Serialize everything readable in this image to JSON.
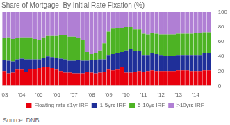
{
  "chart_data": {
    "type": "bar",
    "title": "Share of Mortgage  By Initial Rate Fixation (%)",
    "annotations": [
      "Source: DNB"
    ],
    "stacked": true,
    "grid": false,
    "legend": "bottom",
    "categories": [
      "'03",
      null,
      null,
      null,
      "'04",
      null,
      null,
      null,
      "'05",
      null,
      null,
      null,
      "'06",
      null,
      null,
      null,
      "'07",
      null,
      null,
      null,
      "'08",
      null,
      null,
      null,
      "'09",
      null,
      null,
      null,
      "'10",
      null,
      null,
      null,
      "'11",
      null,
      null,
      null,
      "'12",
      null,
      null,
      null,
      "'13",
      null,
      null,
      null,
      "'14",
      null,
      null,
      null
    ],
    "ylim": [
      0,
      100
    ],
    "yticks": [
      0,
      20,
      40,
      60,
      80,
      100
    ],
    "series": [
      {
        "name": "Floating rate ≤1yr IRF",
        "color": "#e8000d",
        "values": [
          20,
          17,
          18,
          22,
          22,
          19,
          23,
          23,
          24,
          26,
          26,
          24,
          22,
          20,
          18,
          18,
          17,
          17,
          17,
          19,
          18,
          17,
          18,
          19,
          22,
          21,
          22,
          26,
          18,
          18,
          19,
          20,
          19,
          20,
          21,
          20,
          20,
          20,
          20,
          20,
          21,
          21,
          21,
          20,
          20,
          20,
          21,
          21
        ]
      },
      {
        "name": "1-5yrs IRF",
        "color": "#1f2f99",
        "values": [
          15,
          17,
          15,
          14,
          15,
          17,
          13,
          13,
          12,
          12,
          14,
          15,
          16,
          17,
          18,
          16,
          17,
          18,
          17,
          15,
          17,
          18,
          18,
          17,
          20,
          22,
          22,
          20,
          30,
          32,
          28,
          27,
          23,
          22,
          23,
          23,
          22,
          21,
          21,
          21,
          21,
          21,
          21,
          22,
          22,
          22,
          23,
          23
        ]
      },
      {
        "name": "5-10ys IRF",
        "color": "#4db324",
        "values": [
          30,
          32,
          31,
          29,
          29,
          30,
          30,
          28,
          27,
          28,
          28,
          29,
          30,
          32,
          33,
          33,
          33,
          30,
          28,
          12,
          8,
          10,
          12,
          22,
          32,
          35,
          35,
          33,
          32,
          30,
          30,
          30,
          29,
          28,
          28,
          28,
          28,
          29,
          29,
          29,
          29,
          29,
          29,
          29,
          30,
          30,
          29,
          29
        ]
      },
      {
        "name": ">10yrs IRF",
        "color": "#b07fd4",
        "values": [
          35,
          34,
          36,
          35,
          34,
          34,
          34,
          36,
          37,
          34,
          32,
          32,
          32,
          31,
          31,
          33,
          33,
          35,
          38,
          54,
          57,
          55,
          52,
          42,
          26,
          22,
          21,
          21,
          20,
          20,
          23,
          23,
          29,
          30,
          28,
          29,
          30,
          30,
          30,
          30,
          29,
          29,
          29,
          29,
          28,
          28,
          27,
          27
        ]
      }
    ]
  }
}
